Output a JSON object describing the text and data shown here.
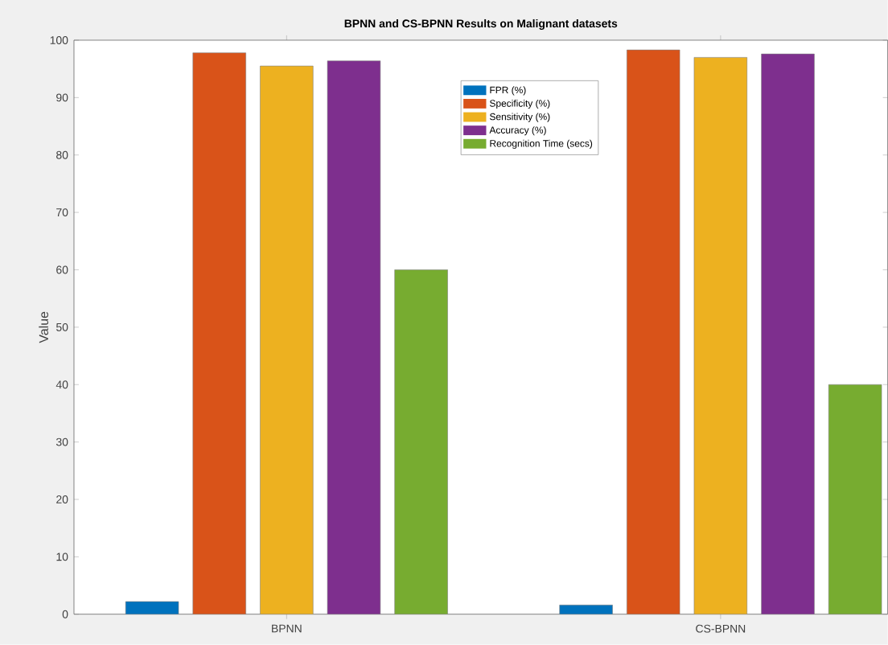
{
  "chart_data": {
    "type": "bar",
    "title": "BPNN and CS-BPNN Results on Malignant datasets",
    "ylabel": "Value",
    "categories": [
      "BPNN",
      "CS-BPNN"
    ],
    "series": [
      {
        "name": "FPR (%)",
        "color": "#0072bd",
        "values": [
          2.2,
          1.6
        ]
      },
      {
        "name": "Specificity (%)",
        "color": "#d95319",
        "values": [
          97.8,
          98.3
        ]
      },
      {
        "name": "Sensitivity (%)",
        "color": "#edb120",
        "values": [
          95.5,
          97.0
        ]
      },
      {
        "name": "Accuracy (%)",
        "color": "#7e2f8e",
        "values": [
          96.4,
          97.6
        ]
      },
      {
        "name": "Recognition Time (secs)",
        "color": "#77ac30",
        "values": [
          60,
          40
        ]
      }
    ],
    "ylim": [
      0,
      100
    ],
    "yticks": [
      0,
      10,
      20,
      30,
      40,
      50,
      60,
      70,
      80,
      90,
      100
    ],
    "grid": false,
    "legend": "top"
  }
}
